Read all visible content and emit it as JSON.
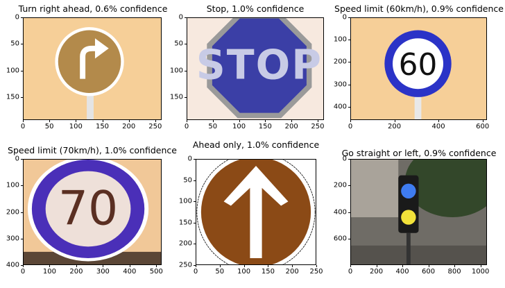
{
  "chart_data": [
    {
      "type": "image",
      "title": "Turn right ahead, 0.6% confidence",
      "xticks": [
        0,
        50,
        100,
        150,
        200,
        250
      ],
      "yticks": [
        0,
        50,
        100,
        150
      ],
      "xlim": [
        0,
        262
      ],
      "ylim": [
        0,
        193
      ],
      "icon": "turn-right-sign",
      "colors": {
        "bg": "#f6cf98",
        "sign": "#b38a4b",
        "arrow": "#ffffff"
      }
    },
    {
      "type": "image",
      "title": "Stop, 1.0% confidence",
      "xticks": [
        0,
        50,
        100,
        150,
        200,
        250
      ],
      "yticks": [
        0,
        50,
        100,
        150
      ],
      "xlim": [
        0,
        262
      ],
      "ylim": [
        0,
        193
      ],
      "icon": "stop-sign",
      "sign_text": "STOP",
      "colors": {
        "bg": "#f7e9df",
        "sign": "#3b3fa6",
        "border": "#9a9a9a",
        "text": "#c8cbe6"
      }
    },
    {
      "type": "image",
      "title": "Speed limit (60km/h), 0.9% confidence",
      "xticks": [
        0,
        200,
        400,
        600
      ],
      "yticks": [
        0,
        100,
        200,
        300,
        400
      ],
      "xlim": [
        0,
        620
      ],
      "ylim": [
        0,
        460
      ],
      "icon": "speed-limit-60-sign",
      "sign_text": "60",
      "colors": {
        "bg": "#f6cf98",
        "ring": "#2b33c7",
        "inner": "#ffffff"
      }
    },
    {
      "type": "image",
      "title": "Speed limit (70km/h), 1.0% confidence",
      "xticks": [
        0,
        100,
        200,
        300,
        400,
        500
      ],
      "yticks": [
        0,
        100,
        200,
        300,
        400
      ],
      "xlim": [
        0,
        520
      ],
      "ylim": [
        0,
        400
      ],
      "icon": "speed-limit-70-sign",
      "sign_text": "70",
      "colors": {
        "bg": "#f1c898",
        "ring": "#4a2fb8",
        "inner": "#eee0d9",
        "text": "#5a2f22"
      }
    },
    {
      "type": "image",
      "title": "Ahead only, 1.0% confidence",
      "xticks": [
        0,
        50,
        100,
        150,
        200,
        250
      ],
      "yticks": [
        0,
        50,
        100,
        150,
        200,
        250
      ],
      "xlim": [
        0,
        250
      ],
      "ylim": [
        0,
        250
      ],
      "icon": "ahead-only-sign",
      "colors": {
        "bg": "#ffffff",
        "sign": "#8b4a16",
        "arrow": "#ffffff"
      }
    },
    {
      "type": "image",
      "title": "Go straight or left, 0.9% confidence",
      "xticks": [
        0,
        200,
        400,
        600,
        800,
        1000
      ],
      "yticks": [
        0,
        200,
        400,
        600
      ],
      "xlim": [
        0,
        1050
      ],
      "ylim": [
        0,
        800
      ],
      "icon": "pedestrian-traffic-light",
      "colors": {
        "bg": "#6f6c66",
        "foliage": "#33472a",
        "light_box": "#1a1a1a",
        "blue": "#3f7cf0",
        "yellow": "#f2e23a"
      }
    }
  ]
}
